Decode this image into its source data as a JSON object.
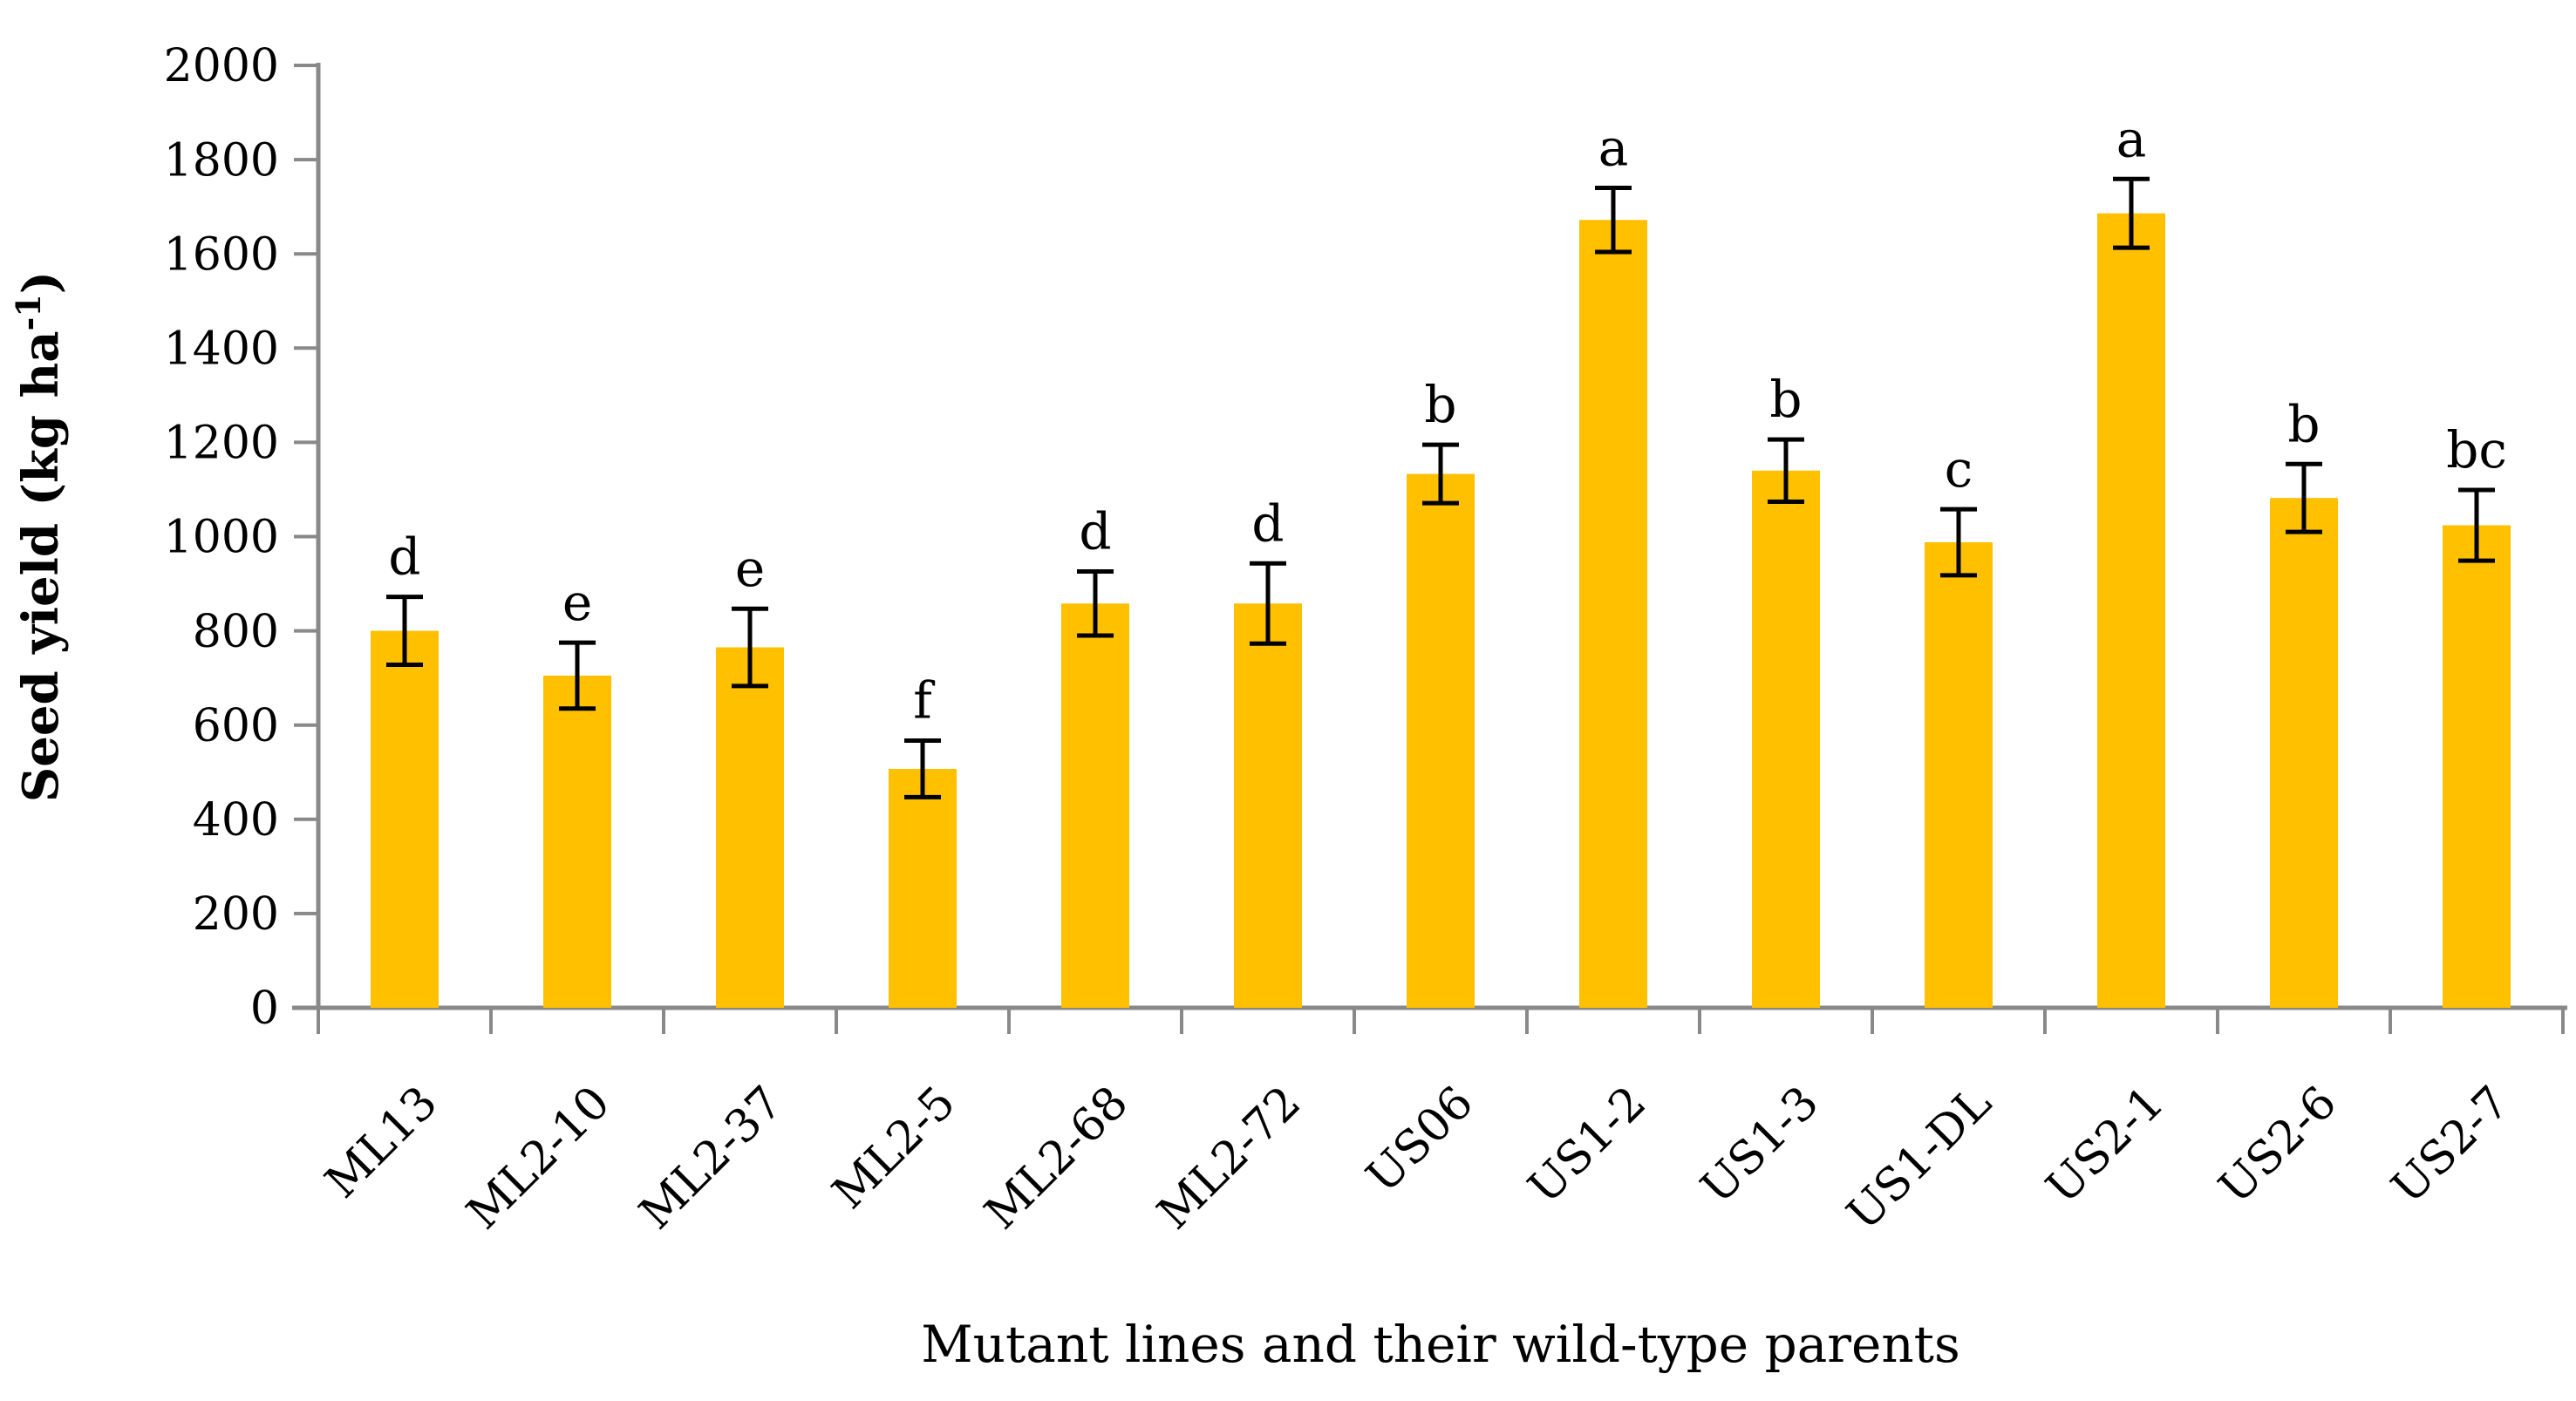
{
  "chart_data": {
    "type": "bar",
    "title": "",
    "xlabel": "Mutant lines and their wild-type parents",
    "ylabel": "Seed yield (kg ha⁻¹)",
    "ylabel_parts": {
      "main": "Seed yield (kg ha",
      "sup": "-1",
      "end": ")"
    },
    "categories": [
      "ML13",
      "ML2-10",
      "ML2-37",
      "ML2-5",
      "ML2-68",
      "ML2-72",
      "US06",
      "US1-2",
      "US1-3",
      "US1-DL",
      "US2-1",
      "US2-6",
      "US2-7"
    ],
    "series": [
      {
        "name": "Seed yield",
        "values": [
          800,
          705,
          765,
          507,
          858,
          858,
          1133,
          1672,
          1140,
          988,
          1686,
          1082,
          1024
        ],
        "error_bars": [
          72,
          70,
          82,
          60,
          68,
          85,
          62,
          68,
          66,
          70,
          73,
          72,
          75
        ],
        "sig_letters": [
          "d",
          "e",
          "e",
          "f",
          "d",
          "d",
          "b",
          "a",
          "b",
          "c",
          "a",
          "b",
          "bc"
        ]
      }
    ],
    "ylim": [
      0,
      2000
    ],
    "ytick_step": 200,
    "ytick_labels": [
      "0",
      "200",
      "400",
      "600",
      "800",
      "1000",
      "1200",
      "1400",
      "1600",
      "1800",
      "2000"
    ],
    "grid": "off",
    "legend": "none",
    "bar_color": "#FFC000",
    "axis_color": "#898989",
    "error_bar_color": "#000000",
    "text_color": "#000000",
    "x_label_rotation_deg": -45
  }
}
